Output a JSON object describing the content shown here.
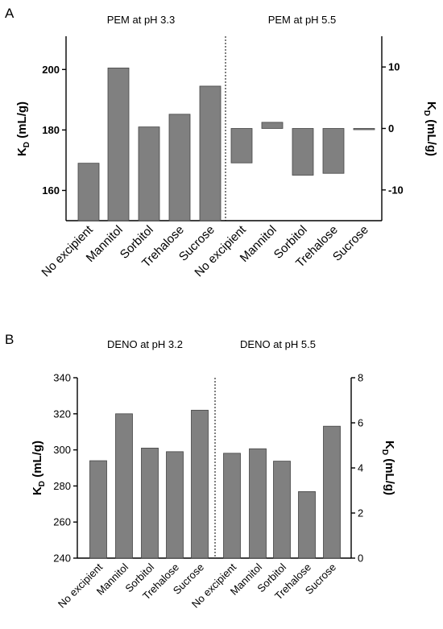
{
  "chart_data": [
    {
      "panel": "A",
      "type": "bar",
      "left": {
        "title": "PEM at pH 3.3",
        "categories": [
          "No excipient",
          "Mannitol",
          "Sorbitol",
          "Trehalose",
          "Sucrose"
        ],
        "values": [
          169,
          200.5,
          181,
          185.2,
          194.5
        ],
        "ylim": [
          150,
          211
        ],
        "yticks": [
          160,
          180,
          200
        ]
      },
      "right": {
        "title": "PEM at pH 5.5",
        "categories": [
          "No excipient",
          "Mannitol",
          "Sorbitol",
          "Trehalose",
          "Sucrose"
        ],
        "values": [
          -5.6,
          1.0,
          -7.6,
          -7.3,
          -0.2
        ],
        "ylim": [
          -15,
          15
        ],
        "yticks": [
          -10,
          0,
          10
        ]
      },
      "ylabel_left": {
        "main": "K",
        "sub": "D",
        "rest": " (mL/g)"
      },
      "ylabel_right": {
        "main": "K",
        "sub": "D",
        "rest": " (mL/g)"
      },
      "grid": false,
      "bar_color": "#808080"
    },
    {
      "panel": "B",
      "type": "bar",
      "left": {
        "title": "DENO at pH 3.2",
        "categories": [
          "No excipient",
          "Mannitol",
          "Sorbitol",
          "Trehalose",
          "Sucrose"
        ],
        "values": [
          294,
          320,
          301,
          299,
          322
        ],
        "ylim": [
          240,
          340
        ],
        "yticks": [
          240,
          260,
          280,
          300,
          320,
          340
        ]
      },
      "right": {
        "title": "DENO at pH 5.5",
        "categories": [
          "No excipient",
          "Mannitol",
          "Sorbitol",
          "Trehalose",
          "Sucrose"
        ],
        "values": [
          4.65,
          4.85,
          4.3,
          2.95,
          5.85
        ],
        "ylim": [
          0,
          8
        ],
        "yticks": [
          0,
          2,
          4,
          6,
          8
        ]
      },
      "ylabel_left": {
        "main": "K",
        "sub": "D",
        "rest": " (mL/g)"
      },
      "ylabel_right": {
        "main": "K",
        "sub": "D",
        "rest": " (mL/g)"
      },
      "grid": false,
      "bar_color": "#808080"
    }
  ]
}
